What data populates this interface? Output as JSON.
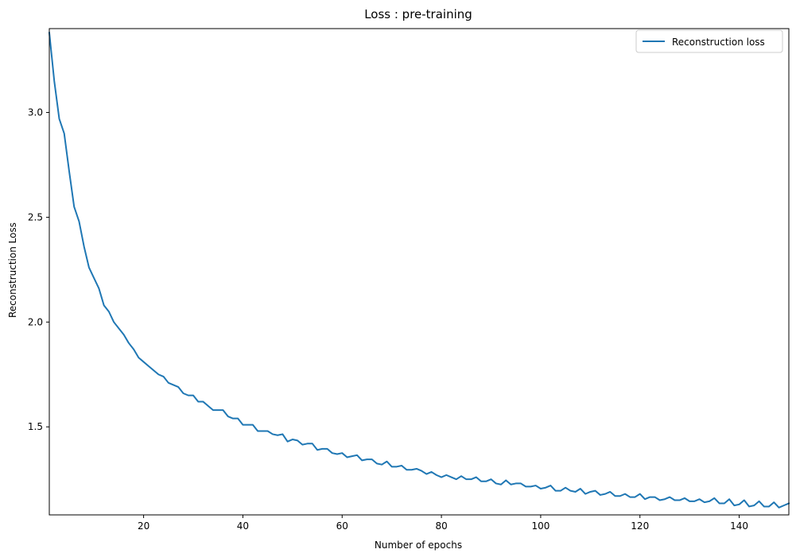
{
  "chart_data": {
    "type": "line",
    "title": "Loss : pre-training",
    "xlabel": "Number of epochs",
    "ylabel": "Reconstruction Loss",
    "xlim": [
      1,
      150
    ],
    "ylim": [
      1.08,
      3.4
    ],
    "xticks": [
      20,
      40,
      60,
      80,
      100,
      120,
      140
    ],
    "yticks": [
      1.5,
      2.0,
      2.5,
      3.0
    ],
    "ytick_labels": [
      "1.5",
      "2.0",
      "2.5",
      "3.0"
    ],
    "grid": false,
    "legend_position": "top-right",
    "series": [
      {
        "name": "Reconstruction loss",
        "color": "#1f77b4",
        "x": [
          1,
          2,
          3,
          4,
          5,
          6,
          7,
          8,
          9,
          10,
          11,
          12,
          13,
          14,
          15,
          16,
          17,
          18,
          19,
          20,
          21,
          22,
          23,
          24,
          25,
          26,
          27,
          28,
          29,
          30,
          31,
          32,
          33,
          34,
          35,
          36,
          37,
          38,
          39,
          40,
          41,
          42,
          43,
          44,
          45,
          46,
          47,
          48,
          49,
          50,
          51,
          52,
          53,
          54,
          55,
          56,
          57,
          58,
          59,
          60,
          61,
          62,
          63,
          64,
          65,
          66,
          67,
          68,
          69,
          70,
          71,
          72,
          73,
          74,
          75,
          76,
          77,
          78,
          79,
          80,
          81,
          82,
          83,
          84,
          85,
          86,
          87,
          88,
          89,
          90,
          91,
          92,
          93,
          94,
          95,
          96,
          97,
          98,
          99,
          100,
          101,
          102,
          103,
          104,
          105,
          106,
          107,
          108,
          109,
          110,
          111,
          112,
          113,
          114,
          115,
          116,
          117,
          118,
          119,
          120,
          121,
          122,
          123,
          124,
          125,
          126,
          127,
          128,
          129,
          130,
          131,
          132,
          133,
          134,
          135,
          136,
          137,
          138,
          139,
          140,
          141,
          142,
          143,
          144,
          145,
          146,
          147,
          148,
          149,
          150
        ],
        "y": [
          3.38,
          3.15,
          2.97,
          2.9,
          2.72,
          2.55,
          2.48,
          2.36,
          2.26,
          2.21,
          2.16,
          2.08,
          2.05,
          2.0,
          1.97,
          1.94,
          1.9,
          1.87,
          1.83,
          1.81,
          1.79,
          1.77,
          1.75,
          1.74,
          1.71,
          1.7,
          1.69,
          1.66,
          1.65,
          1.65,
          1.62,
          1.62,
          1.6,
          1.58,
          1.58,
          1.58,
          1.55,
          1.54,
          1.54,
          1.51,
          1.51,
          1.51,
          1.48,
          1.48,
          1.48,
          1.465,
          1.46,
          1.465,
          1.43,
          1.44,
          1.435,
          1.415,
          1.42,
          1.42,
          1.39,
          1.395,
          1.395,
          1.375,
          1.37,
          1.375,
          1.355,
          1.36,
          1.365,
          1.34,
          1.345,
          1.345,
          1.325,
          1.32,
          1.335,
          1.31,
          1.31,
          1.315,
          1.295,
          1.295,
          1.3,
          1.29,
          1.275,
          1.285,
          1.27,
          1.26,
          1.27,
          1.26,
          1.25,
          1.265,
          1.25,
          1.25,
          1.26,
          1.24,
          1.24,
          1.25,
          1.23,
          1.225,
          1.245,
          1.225,
          1.23,
          1.23,
          1.215,
          1.215,
          1.22,
          1.205,
          1.21,
          1.22,
          1.195,
          1.195,
          1.21,
          1.195,
          1.19,
          1.205,
          1.18,
          1.19,
          1.195,
          1.175,
          1.18,
          1.19,
          1.17,
          1.17,
          1.18,
          1.165,
          1.165,
          1.18,
          1.155,
          1.165,
          1.165,
          1.15,
          1.155,
          1.165,
          1.15,
          1.15,
          1.16,
          1.145,
          1.145,
          1.155,
          1.14,
          1.145,
          1.16,
          1.135,
          1.135,
          1.155,
          1.125,
          1.13,
          1.15,
          1.12,
          1.125,
          1.145,
          1.12,
          1.12,
          1.14,
          1.115,
          1.125,
          1.135
        ]
      }
    ]
  }
}
